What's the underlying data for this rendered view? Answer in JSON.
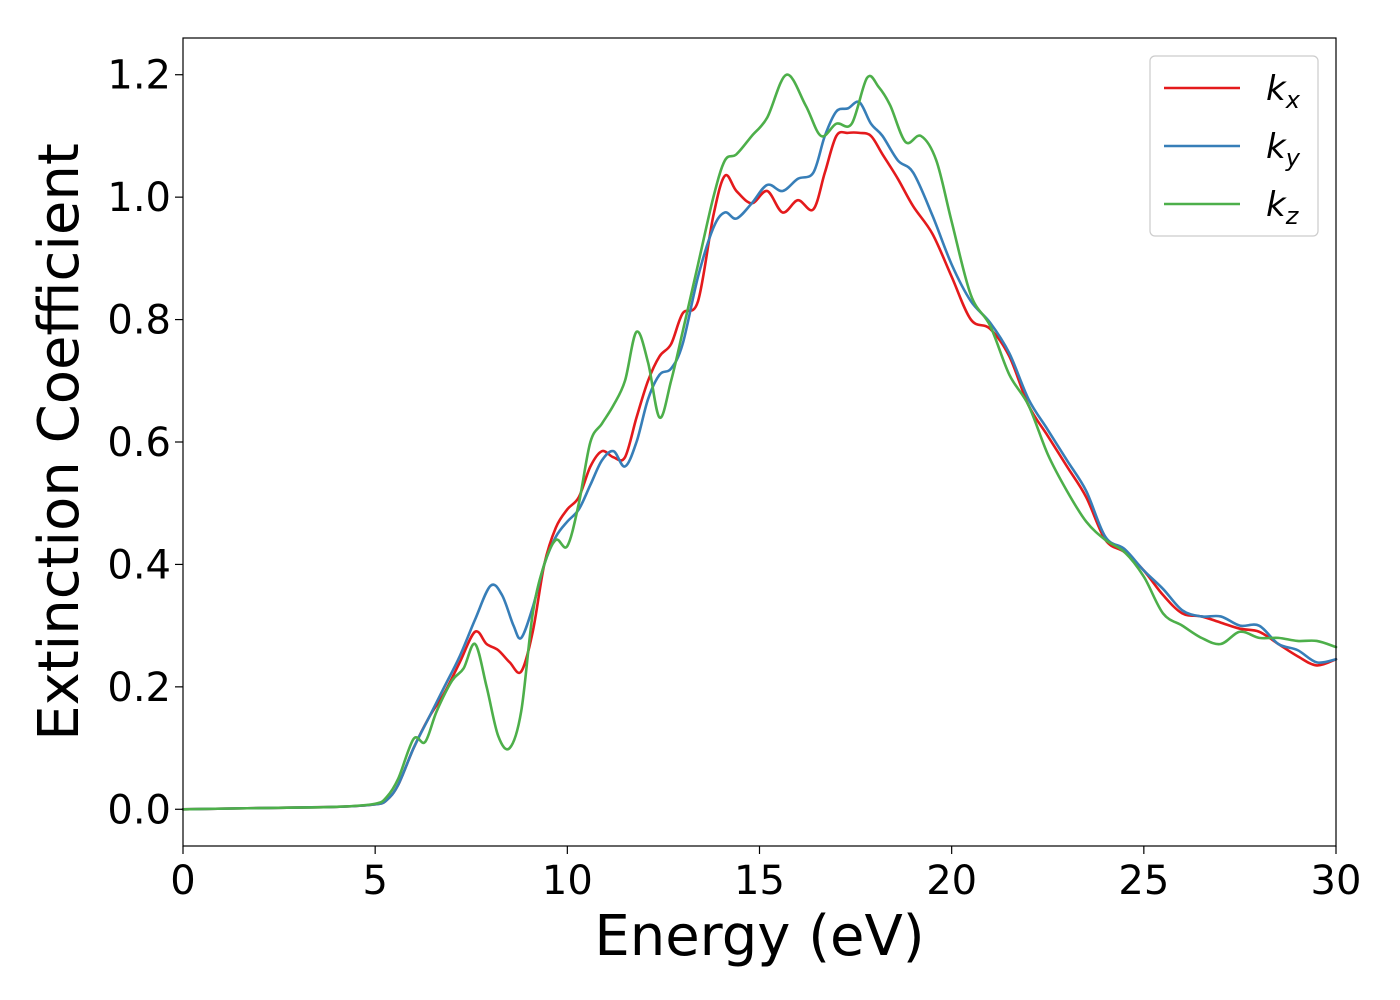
{
  "chart_data": {
    "type": "line",
    "title": "",
    "xlabel": "Energy (eV)",
    "ylabel": "Extinction Coefficient",
    "xlim": [
      0,
      30
    ],
    "ylim": [
      -0.06,
      1.26
    ],
    "xticks": [
      0,
      5,
      10,
      15,
      20,
      25,
      30
    ],
    "xtick_labels": [
      "0",
      "5",
      "10",
      "15",
      "20",
      "25",
      "30"
    ],
    "yticks": [
      0.0,
      0.2,
      0.4,
      0.6,
      0.8,
      1.0,
      1.2
    ],
    "ytick_labels": [
      "0.0",
      "0.2",
      "0.4",
      "0.6",
      "0.8",
      "1.0",
      "1.2"
    ],
    "grid": false,
    "legend_position": "top-right",
    "series": [
      {
        "name": "k_x",
        "legend_main": "k",
        "legend_sub": "x",
        "color": "#e41a1c",
        "x": [
          0,
          2,
          4,
          5,
          5.3,
          5.6,
          6,
          6.4,
          6.8,
          7.2,
          7.6,
          7.9,
          8.2,
          8.5,
          8.8,
          9.1,
          9.4,
          9.7,
          10,
          10.3,
          10.6,
          10.9,
          11.2,
          11.5,
          11.8,
          12.1,
          12.4,
          12.7,
          13,
          13.4,
          13.8,
          14.1,
          14.4,
          14.8,
          15.2,
          15.6,
          16,
          16.4,
          16.7,
          17,
          17.3,
          17.6,
          17.9,
          18.2,
          18.6,
          19,
          19.5,
          20,
          20.5,
          21,
          21.5,
          22,
          22.5,
          23,
          23.5,
          24,
          24.5,
          25,
          25.5,
          26,
          26.5,
          27,
          27.5,
          28,
          28.5,
          29,
          29.5,
          30
        ],
        "values": [
          0,
          0.002,
          0.004,
          0.008,
          0.015,
          0.04,
          0.1,
          0.15,
          0.19,
          0.24,
          0.29,
          0.27,
          0.26,
          0.24,
          0.225,
          0.29,
          0.4,
          0.46,
          0.49,
          0.51,
          0.56,
          0.585,
          0.575,
          0.575,
          0.64,
          0.7,
          0.74,
          0.76,
          0.81,
          0.83,
          0.97,
          1.035,
          1.01,
          0.99,
          1.01,
          0.975,
          0.995,
          0.98,
          1.04,
          1.1,
          1.105,
          1.105,
          1.1,
          1.07,
          1.03,
          0.985,
          0.94,
          0.87,
          0.8,
          0.785,
          0.74,
          0.66,
          0.61,
          0.56,
          0.51,
          0.44,
          0.42,
          0.39,
          0.35,
          0.32,
          0.315,
          0.305,
          0.295,
          0.29,
          0.27,
          0.25,
          0.235,
          0.245
        ]
      },
      {
        "name": "k_y",
        "legend_main": "k",
        "legend_sub": "y",
        "color": "#377eb8",
        "x": [
          0,
          2,
          4,
          5,
          5.3,
          5.6,
          6,
          6.4,
          6.8,
          7.2,
          7.6,
          8,
          8.3,
          8.6,
          8.8,
          9.1,
          9.4,
          9.7,
          10,
          10.3,
          10.6,
          10.9,
          11.2,
          11.5,
          11.8,
          12.1,
          12.4,
          12.7,
          13,
          13.4,
          13.8,
          14.1,
          14.4,
          14.8,
          15.2,
          15.6,
          16,
          16.4,
          16.7,
          17,
          17.3,
          17.6,
          17.9,
          18.2,
          18.6,
          19,
          19.5,
          20,
          20.5,
          21,
          21.5,
          22,
          22.5,
          23,
          23.5,
          24,
          24.5,
          25,
          25.5,
          26,
          26.5,
          27,
          27.5,
          28,
          28.5,
          29,
          29.5,
          30
        ],
        "values": [
          0,
          0.002,
          0.004,
          0.008,
          0.015,
          0.04,
          0.1,
          0.15,
          0.2,
          0.25,
          0.31,
          0.365,
          0.35,
          0.3,
          0.28,
          0.33,
          0.4,
          0.445,
          0.47,
          0.49,
          0.53,
          0.57,
          0.585,
          0.56,
          0.6,
          0.67,
          0.71,
          0.72,
          0.76,
          0.87,
          0.95,
          0.975,
          0.965,
          0.99,
          1.02,
          1.01,
          1.03,
          1.04,
          1.1,
          1.14,
          1.145,
          1.155,
          1.12,
          1.1,
          1.06,
          1.04,
          0.97,
          0.89,
          0.83,
          0.795,
          0.745,
          0.67,
          0.62,
          0.57,
          0.52,
          0.445,
          0.425,
          0.39,
          0.36,
          0.325,
          0.315,
          0.315,
          0.3,
          0.3,
          0.27,
          0.26,
          0.24,
          0.245
        ]
      },
      {
        "name": "k_z",
        "legend_main": "k",
        "legend_sub": "z",
        "color": "#4daf4a",
        "x": [
          0,
          2,
          4,
          5,
          5.3,
          5.6,
          6,
          6.3,
          6.6,
          7,
          7.3,
          7.6,
          7.9,
          8.2,
          8.5,
          8.8,
          9.1,
          9.4,
          9.7,
          10,
          10.3,
          10.6,
          10.9,
          11.2,
          11.5,
          11.8,
          12.1,
          12.4,
          12.7,
          13,
          13.4,
          13.8,
          14.1,
          14.4,
          14.8,
          15.2,
          15.7,
          16.2,
          16.6,
          17,
          17.4,
          17.8,
          18.1,
          18.4,
          18.8,
          19.2,
          19.6,
          20,
          20.5,
          21,
          21.5,
          22,
          22.5,
          23,
          23.5,
          24,
          24.5,
          25,
          25.5,
          26,
          26.5,
          27,
          27.5,
          28,
          28.5,
          29,
          29.5,
          30
        ],
        "values": [
          0,
          0.002,
          0.004,
          0.009,
          0.02,
          0.05,
          0.115,
          0.11,
          0.16,
          0.21,
          0.23,
          0.27,
          0.2,
          0.12,
          0.1,
          0.16,
          0.32,
          0.4,
          0.44,
          0.43,
          0.5,
          0.6,
          0.63,
          0.66,
          0.7,
          0.78,
          0.73,
          0.64,
          0.7,
          0.78,
          0.89,
          1.0,
          1.06,
          1.07,
          1.1,
          1.13,
          1.2,
          1.15,
          1.1,
          1.12,
          1.12,
          1.195,
          1.18,
          1.15,
          1.09,
          1.1,
          1.06,
          0.96,
          0.84,
          0.79,
          0.71,
          0.66,
          0.58,
          0.52,
          0.47,
          0.44,
          0.42,
          0.38,
          0.32,
          0.3,
          0.28,
          0.27,
          0.29,
          0.28,
          0.28,
          0.275,
          0.275,
          0.265
        ]
      }
    ]
  }
}
